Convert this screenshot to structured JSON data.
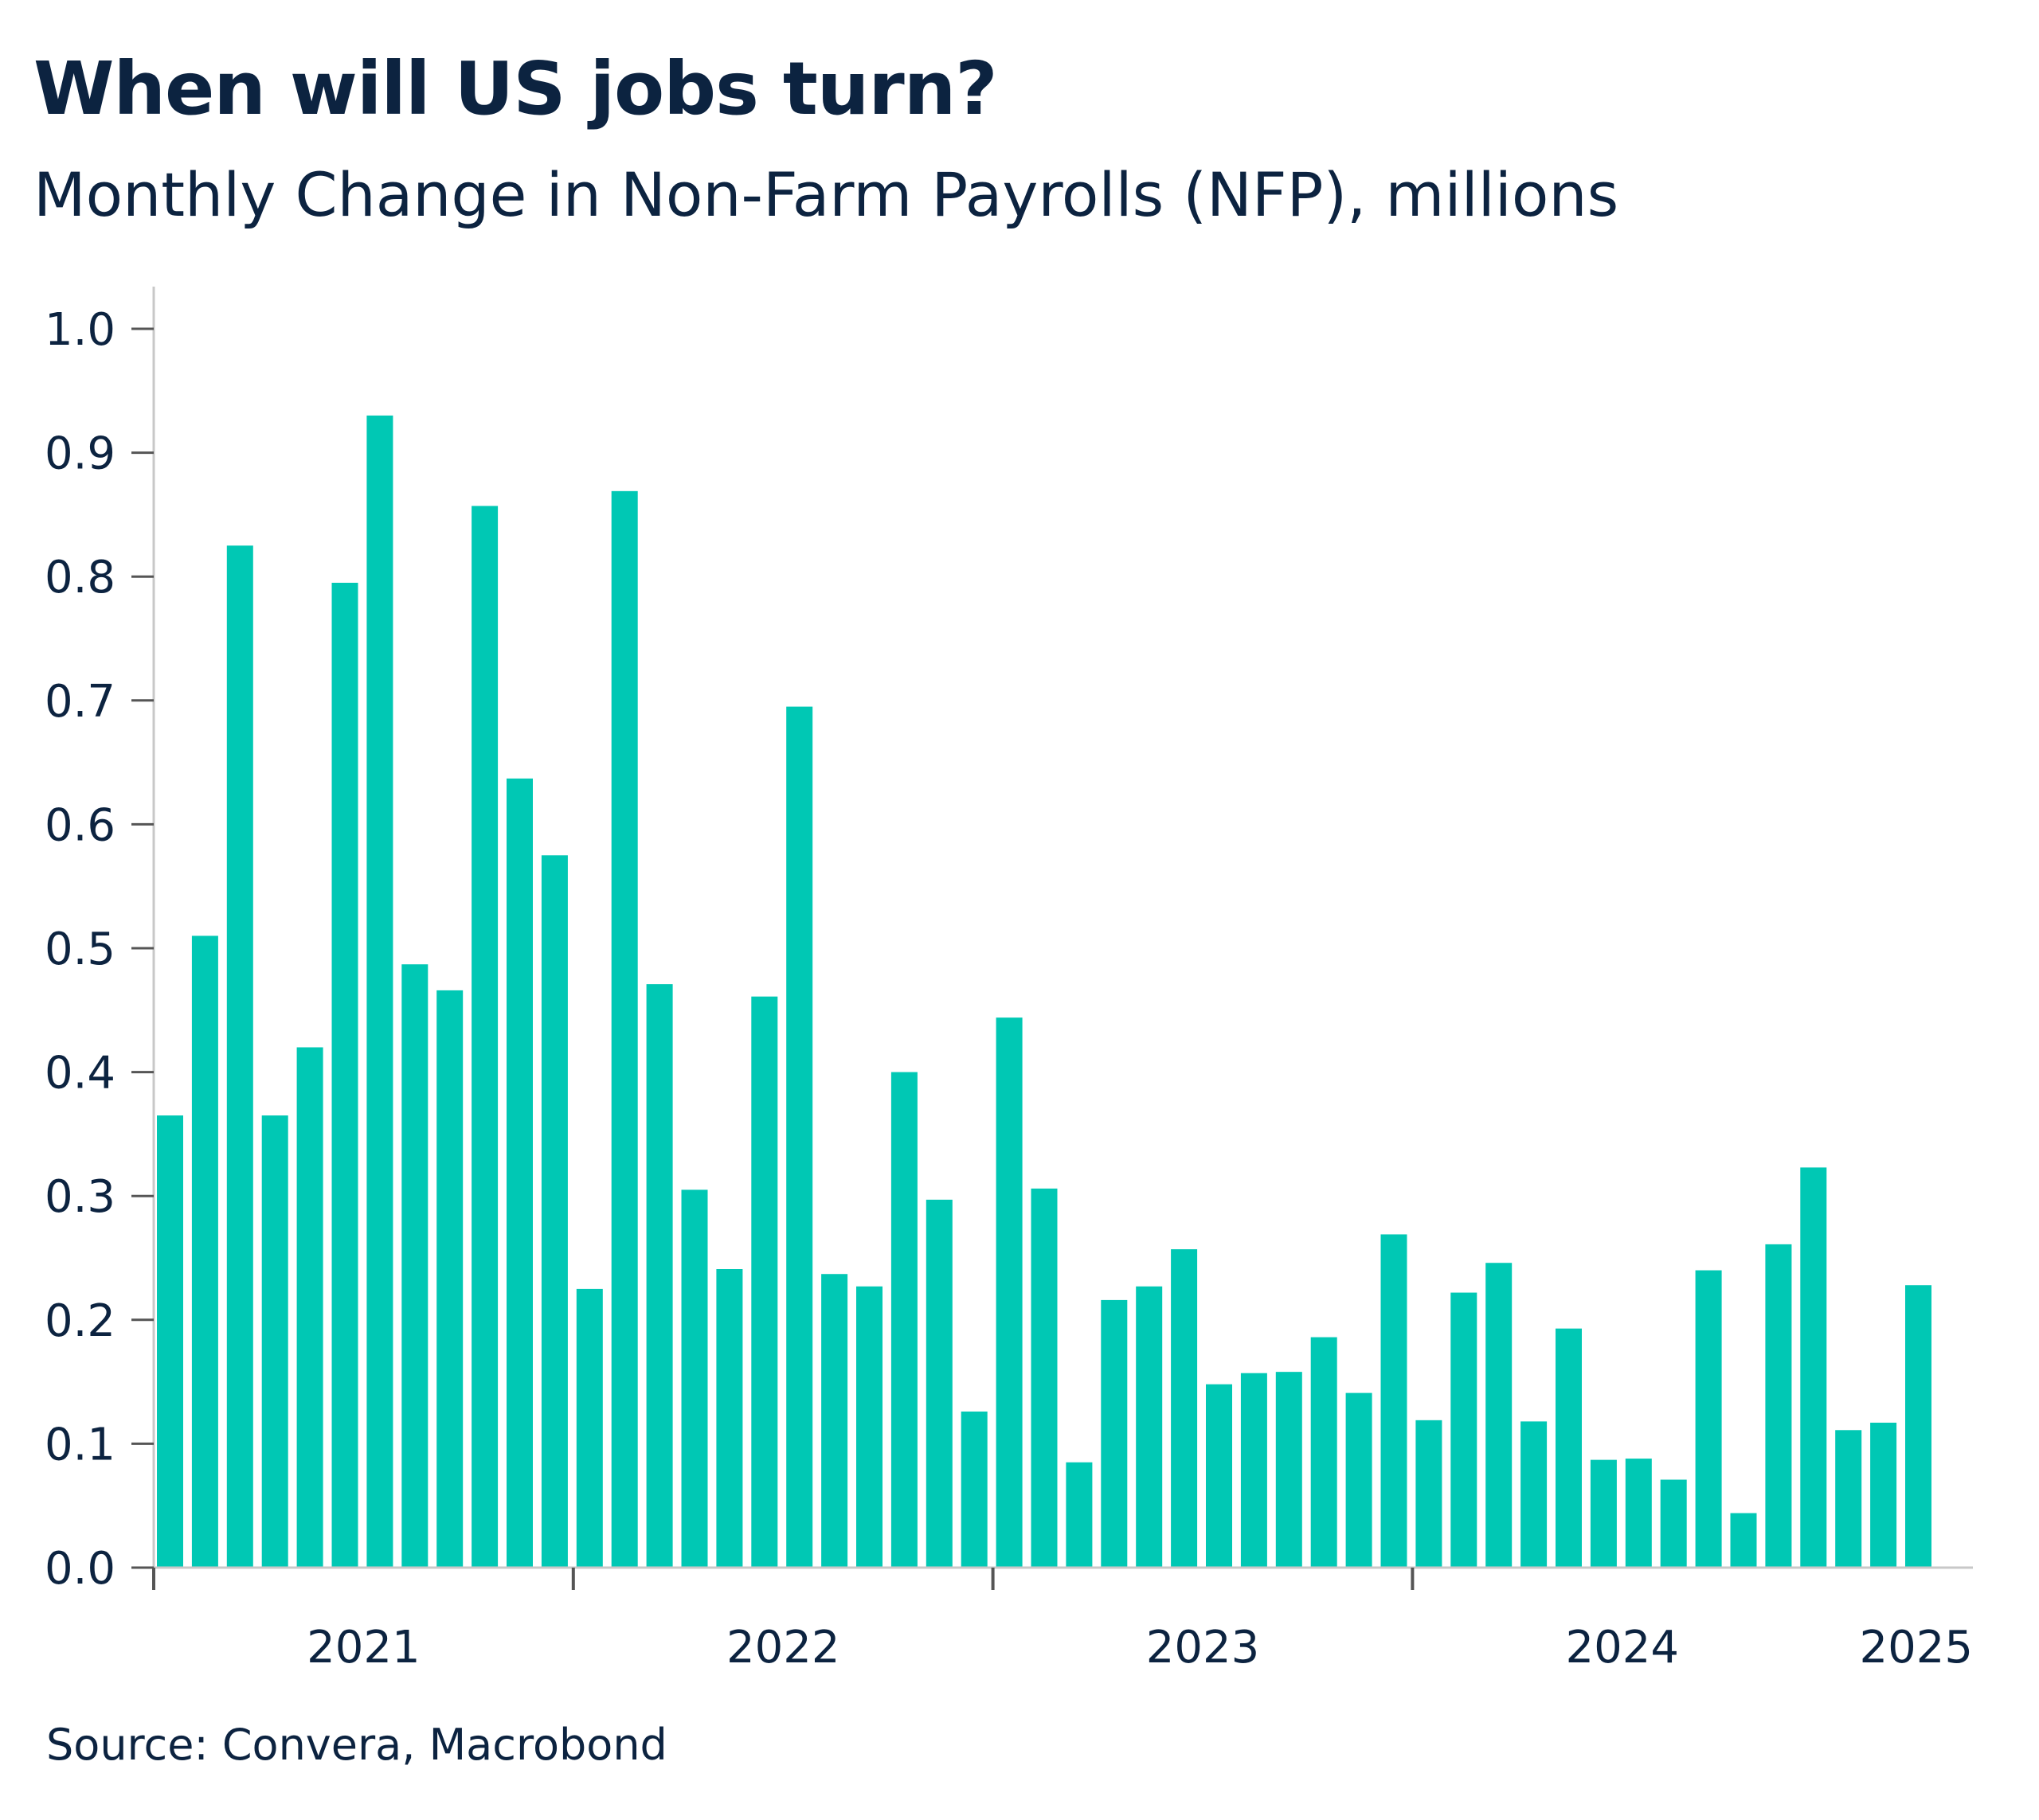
{
  "chart_data": {
    "type": "bar",
    "title": "When will US jobs turn?",
    "subtitle": "Monthly Change in Non-Farm Payrolls (NFP), millions",
    "source": "Source: Convera, Macrobond",
    "bar_color": "#00c8b4",
    "text_color": "#0c2340",
    "ylim": [
      0,
      1.0
    ],
    "yticks": [
      "0.0",
      "0.1",
      "0.2",
      "0.3",
      "0.4",
      "0.5",
      "0.6",
      "0.7",
      "0.8",
      "0.9",
      "1.0"
    ],
    "xticks": [
      "2021",
      "2022",
      "2023",
      "2024",
      "2025"
    ],
    "grid": false,
    "x": [
      "2021-01",
      "2021-02",
      "2021-03",
      "2021-04",
      "2021-05",
      "2021-06",
      "2021-07",
      "2021-08",
      "2021-09",
      "2021-10",
      "2021-11",
      "2021-12",
      "2022-01",
      "2022-02",
      "2022-03",
      "2022-04",
      "2022-05",
      "2022-06",
      "2022-07",
      "2022-08",
      "2022-09",
      "2022-10",
      "2022-11",
      "2022-12",
      "2023-01",
      "2023-02",
      "2023-03",
      "2023-04",
      "2023-05",
      "2023-06",
      "2023-07",
      "2023-08",
      "2023-09",
      "2023-10",
      "2023-11",
      "2023-12",
      "2024-01",
      "2024-02",
      "2024-03",
      "2024-04",
      "2024-05",
      "2024-06",
      "2024-07",
      "2024-08",
      "2024-09",
      "2024-10",
      "2024-11",
      "2024-12",
      "2025-01",
      "2025-02",
      "2025-03"
    ],
    "values": [
      0.365,
      0.51,
      0.825,
      0.365,
      0.42,
      0.795,
      0.93,
      0.487,
      0.466,
      0.857,
      0.637,
      0.575,
      0.225,
      0.869,
      0.471,
      0.305,
      0.241,
      0.461,
      0.695,
      0.237,
      0.227,
      0.4,
      0.297,
      0.126,
      0.444,
      0.306,
      0.085,
      0.216,
      0.227,
      0.257,
      0.148,
      0.157,
      0.158,
      0.186,
      0.141,
      0.269,
      0.119,
      0.222,
      0.246,
      0.118,
      0.193,
      0.087,
      0.088,
      0.071,
      0.24,
      0.044,
      0.261,
      0.323,
      0.111,
      0.117,
      0.228
    ]
  }
}
